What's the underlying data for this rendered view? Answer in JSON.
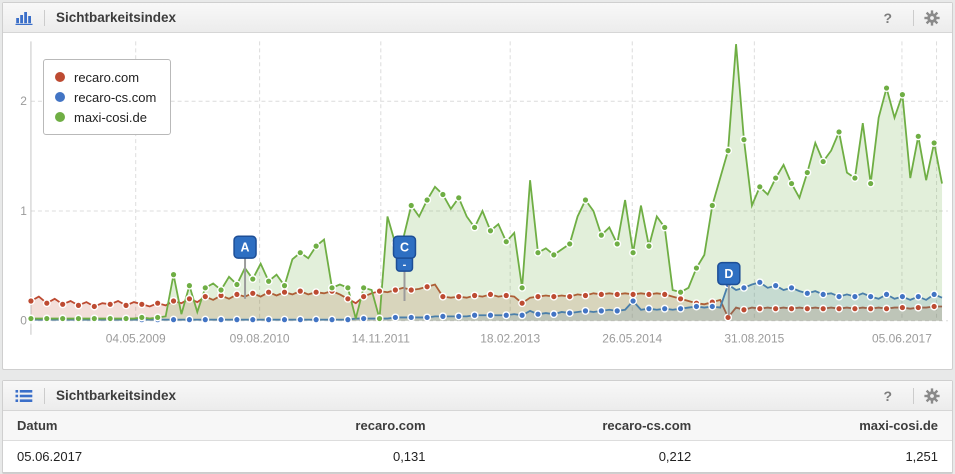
{
  "panel_chart": {
    "title": "Sichtbarkeitsindex",
    "help_label": "?"
  },
  "panel_table": {
    "title": "Sichtbarkeitsindex",
    "help_label": "?",
    "columns": [
      "Datum",
      "recaro.com",
      "recaro-cs.com",
      "maxi-cosi.de"
    ],
    "rows": [
      [
        "05.06.2017",
        "0,131",
        "0,212",
        "1,251"
      ]
    ]
  },
  "colors": {
    "accent_blue": "#3b6fc9",
    "icon_gray": "#8a8a8a",
    "badge_blue": "#2e6fc2",
    "badge_border": "#1d4e96"
  },
  "chart_data": {
    "type": "area",
    "title": "Sichtbarkeitsindex",
    "ylabel": "Sichtbarkeitsindex",
    "ylim": [
      0,
      2.6
    ],
    "yticks": [
      0,
      1,
      2
    ],
    "grid": true,
    "legend_position": "top-left",
    "x_axis": {
      "labels": [
        {
          "text": "04.05.2009",
          "pos": 0.115
        },
        {
          "text": "09.08.2010",
          "pos": 0.251
        },
        {
          "text": "14.11.2011",
          "pos": 0.384
        },
        {
          "text": "18.02.2013",
          "pos": 0.526
        },
        {
          "text": "26.05.2014",
          "pos": 0.66
        },
        {
          "text": "31.08.2015",
          "pos": 0.794
        },
        {
          "text": "05.06.2017",
          "pos": 0.956
        }
      ],
      "extra_gridlines": [
        0.994
      ]
    },
    "annotations": [
      {
        "label": "A",
        "pos": 0.235,
        "badge_v": 0.67,
        "tip_v": 0.2
      },
      {
        "label": "C",
        "sub": "-",
        "pos": 0.41,
        "badge_v": 0.67,
        "tip_v": 0.18
      },
      {
        "label": "D",
        "pos": 0.766,
        "badge_v": 0.43,
        "tip_v": 0.05
      }
    ],
    "series": [
      {
        "name": "recaro.com",
        "color": "#bd4b32",
        "area_opacity": 0.18,
        "last_value": "0,131",
        "values": [
          0.18,
          0.22,
          0.16,
          0.2,
          0.15,
          0.18,
          0.14,
          0.17,
          0.13,
          0.16,
          0.15,
          0.18,
          0.14,
          0.17,
          0.15,
          0.13,
          0.16,
          0.14,
          0.18,
          0.16,
          0.2,
          0.17,
          0.22,
          0.19,
          0.23,
          0.2,
          0.24,
          0.22,
          0.25,
          0.22,
          0.26,
          0.23,
          0.26,
          0.24,
          0.27,
          0.24,
          0.26,
          0.25,
          0.27,
          0.24,
          0.2,
          0.16,
          0.22,
          0.25,
          0.27,
          0.26,
          0.28,
          0.3,
          0.28,
          0.29,
          0.31,
          0.33,
          0.22,
          0.21,
          0.22,
          0.21,
          0.23,
          0.22,
          0.24,
          0.22,
          0.23,
          0.22,
          0.16,
          0.21,
          0.22,
          0.23,
          0.22,
          0.23,
          0.22,
          0.24,
          0.23,
          0.25,
          0.24,
          0.25,
          0.24,
          0.25,
          0.24,
          0.25,
          0.24,
          0.25,
          0.24,
          0.22,
          0.2,
          0.18,
          0.16,
          0.15,
          0.17,
          0.19,
          0.03,
          0.12,
          0.1,
          0.12,
          0.11,
          0.12,
          0.11,
          0.12,
          0.11,
          0.12,
          0.11,
          0.12,
          0.11,
          0.12,
          0.11,
          0.12,
          0.11,
          0.12,
          0.11,
          0.12,
          0.11,
          0.12,
          0.12,
          0.11,
          0.12,
          0.12,
          0.13,
          0.13
        ]
      },
      {
        "name": "recaro-cs.com",
        "color": "#4274c4",
        "area_opacity": 0.18,
        "last_value": "0,212",
        "values": [
          0.01,
          0.01,
          0.01,
          0.01,
          0.01,
          0.01,
          0.01,
          0.01,
          0.01,
          0.01,
          0.01,
          0.01,
          0.01,
          0.01,
          0.01,
          0.01,
          0.01,
          0.01,
          0.01,
          0.01,
          0.01,
          0.01,
          0.01,
          0.01,
          0.01,
          0.01,
          0.01,
          0.01,
          0.01,
          0.01,
          0.01,
          0.01,
          0.01,
          0.01,
          0.01,
          0.01,
          0.01,
          0.01,
          0.01,
          0.01,
          0.01,
          0.02,
          0.02,
          0.02,
          0.02,
          0.02,
          0.03,
          0.03,
          0.03,
          0.03,
          0.03,
          0.04,
          0.04,
          0.04,
          0.04,
          0.04,
          0.05,
          0.05,
          0.05,
          0.05,
          0.05,
          0.06,
          0.05,
          0.09,
          0.06,
          0.07,
          0.06,
          0.08,
          0.07,
          0.08,
          0.09,
          0.08,
          0.09,
          0.1,
          0.09,
          0.1,
          0.18,
          0.1,
          0.11,
          0.1,
          0.11,
          0.1,
          0.11,
          0.12,
          0.13,
          0.12,
          0.13,
          0.12,
          0.33,
          0.28,
          0.3,
          0.33,
          0.35,
          0.3,
          0.32,
          0.28,
          0.3,
          0.27,
          0.25,
          0.27,
          0.24,
          0.25,
          0.22,
          0.24,
          0.22,
          0.25,
          0.22,
          0.2,
          0.24,
          0.2,
          0.22,
          0.19,
          0.22,
          0.19,
          0.24,
          0.21
        ]
      },
      {
        "name": "maxi-cosi.de",
        "color": "#6fae44",
        "area_opacity": 0.2,
        "last_value": "1,251",
        "values": [
          0.02,
          0.02,
          0.02,
          0.02,
          0.02,
          0.02,
          0.02,
          0.02,
          0.02,
          0.02,
          0.02,
          0.02,
          0.02,
          0.02,
          0.03,
          0.02,
          0.03,
          0.04,
          0.42,
          0.06,
          0.32,
          0.08,
          0.3,
          0.34,
          0.28,
          0.4,
          0.33,
          0.48,
          0.38,
          0.52,
          0.36,
          0.42,
          0.32,
          0.56,
          0.62,
          0.57,
          0.68,
          0.74,
          0.3,
          0.33,
          0.3,
          0.02,
          0.3,
          0.28,
          0.02,
          0.95,
          0.7,
          0.75,
          1.05,
          0.95,
          1.1,
          1.22,
          1.15,
          1.02,
          1.12,
          0.95,
          0.85,
          1.0,
          0.82,
          0.88,
          0.72,
          0.8,
          0.3,
          1.28,
          0.62,
          0.66,
          0.6,
          0.65,
          0.7,
          0.95,
          1.1,
          1.0,
          0.78,
          0.85,
          0.7,
          1.1,
          0.62,
          1.05,
          0.68,
          0.95,
          0.85,
          0.28,
          0.26,
          0.3,
          0.48,
          0.6,
          1.05,
          1.3,
          1.55,
          2.52,
          1.65,
          1.05,
          1.22,
          1.15,
          1.3,
          1.42,
          1.25,
          1.12,
          1.35,
          1.62,
          1.45,
          1.55,
          1.72,
          1.35,
          1.3,
          1.8,
          1.25,
          1.85,
          2.12,
          1.85,
          2.06,
          1.3,
          1.68,
          1.28,
          1.62,
          1.25
        ]
      }
    ]
  }
}
